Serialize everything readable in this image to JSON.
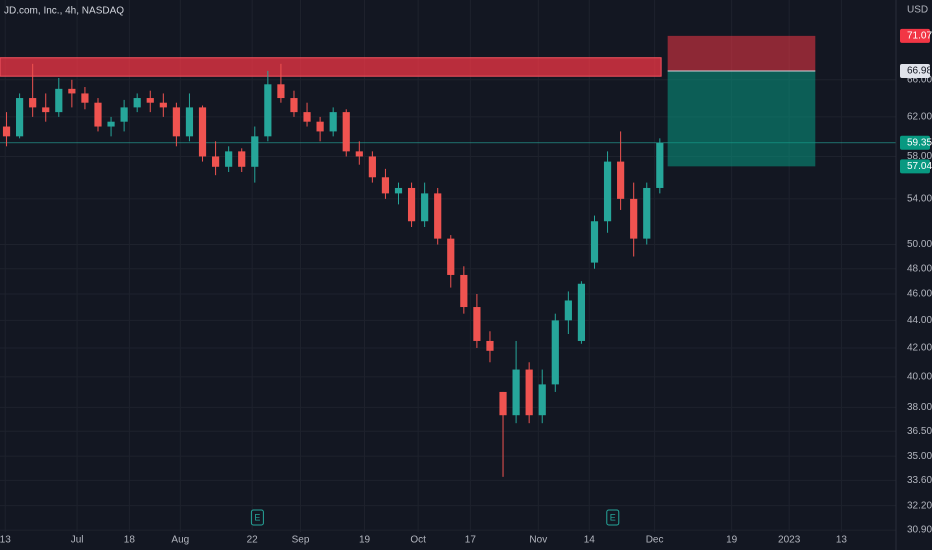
{
  "chart_data": {
    "type": "candlestick",
    "title": "JD.com, Inc., 4h, NASDAQ",
    "currency": "USD",
    "log_scale": true,
    "grid": true,
    "up_color": "#26a69a",
    "down_color": "#ef5350",
    "xlim": [
      -0.5,
      68
    ],
    "ylim": [
      30.8,
      75.5
    ],
    "xticks": [
      {
        "value": -0.1,
        "label": "13"
      },
      {
        "value": 5.4,
        "label": "Jul"
      },
      {
        "value": 9.4,
        "label": "18"
      },
      {
        "value": 13.3,
        "label": "Aug"
      },
      {
        "value": 18.8,
        "label": "22"
      },
      {
        "value": 22.5,
        "label": "Sep"
      },
      {
        "value": 27.4,
        "label": "19"
      },
      {
        "value": 31.5,
        "label": "Oct"
      },
      {
        "value": 35.5,
        "label": "17"
      },
      {
        "value": 40.7,
        "label": "Nov"
      },
      {
        "value": 44.6,
        "label": "14"
      },
      {
        "value": 49.6,
        "label": "Dec"
      },
      {
        "value": 55.5,
        "label": "19"
      },
      {
        "value": 59.9,
        "label": "2023"
      },
      {
        "value": 63.9,
        "label": "13"
      }
    ],
    "yticks": [
      {
        "value": 30.9,
        "label": "30.90"
      },
      {
        "value": 32.2,
        "label": "32.20"
      },
      {
        "value": 33.6,
        "label": "33.60"
      },
      {
        "value": 35,
        "label": "35.00"
      },
      {
        "value": 36.5,
        "label": "36.50"
      },
      {
        "value": 38,
        "label": "38.00"
      },
      {
        "value": 40,
        "label": "40.00"
      },
      {
        "value": 42,
        "label": "42.00"
      },
      {
        "value": 44,
        "label": "44.00"
      },
      {
        "value": 46,
        "label": "46.00"
      },
      {
        "value": 48,
        "label": "48.00"
      },
      {
        "value": 50,
        "label": "50.00"
      },
      {
        "value": 54,
        "label": "54.00"
      },
      {
        "value": 58,
        "label": "58.00"
      },
      {
        "value": 62,
        "label": "62.00"
      },
      {
        "value": 66,
        "label": "66.00"
      }
    ],
    "candles": {
      "open": [
        61,
        60,
        64,
        63,
        62.5,
        65,
        64.5,
        63.5,
        61,
        61.5,
        63,
        64,
        63.5,
        63,
        60,
        63,
        58,
        57,
        58.5,
        57,
        60,
        65.5,
        64,
        62.5,
        61.5,
        60.5,
        62.5,
        58.5,
        58,
        56,
        54.5,
        55,
        52,
        54.5,
        50.5,
        47.5,
        45,
        42.5,
        39,
        37.5,
        40.5,
        37.5,
        39.5,
        44,
        42.5,
        48.5,
        52,
        57.5,
        54,
        50.5,
        55
      ],
      "high": [
        62.5,
        64.5,
        67.8,
        64.5,
        66.2,
        66,
        65.2,
        64,
        62,
        63.8,
        64.5,
        64.8,
        64.5,
        63.5,
        64.5,
        63.2,
        59.5,
        59,
        58.8,
        61,
        67,
        67.8,
        64.8,
        63.5,
        62,
        63,
        62.8,
        59.5,
        58.5,
        56.8,
        55.5,
        55.5,
        55.5,
        55,
        50.8,
        48.2,
        46,
        43.2,
        39,
        42.5,
        41,
        40.5,
        44.5,
        46.2,
        47,
        52.5,
        58.5,
        60.5,
        55.5,
        55.5,
        59.8
      ],
      "low": [
        59,
        59.8,
        62,
        61.5,
        62,
        63,
        62.8,
        60.5,
        60,
        60.5,
        62.5,
        62.5,
        62,
        59,
        59.5,
        57.5,
        56.2,
        56.5,
        56.5,
        55.5,
        59.5,
        63.5,
        62,
        61,
        59.5,
        60,
        58,
        57.2,
        55.5,
        54,
        53.5,
        51.5,
        51.5,
        50,
        46.5,
        44.5,
        42,
        41,
        33.8,
        37,
        37,
        37,
        39,
        43,
        42.3,
        48,
        51,
        53,
        49,
        50,
        54.5
      ],
      "close": [
        60,
        64,
        63,
        62.5,
        65,
        64.5,
        63.5,
        61,
        61.5,
        63,
        64,
        63.5,
        63,
        60,
        63,
        58,
        57,
        58.5,
        57,
        60,
        65.5,
        64,
        62.5,
        61.5,
        60.5,
        62.5,
        58.5,
        58,
        56,
        54.5,
        55,
        52,
        54.5,
        50.5,
        47.5,
        45,
        42.5,
        41.8,
        37.5,
        40.5,
        37.5,
        39.5,
        44,
        45.5,
        46.8,
        52,
        57.5,
        54,
        50.5,
        55,
        59.35
      ]
    },
    "last_price": 59.35,
    "zone": {
      "start": -0.5,
      "end": 50.1,
      "top": 68.5,
      "bottom": 66.4
    },
    "position": {
      "start": 50.6,
      "end": 61.9,
      "stop": 71.07,
      "entry": 66.98,
      "target": 57.04
    },
    "markers": [
      {
        "index": 19.2,
        "label": "E"
      },
      {
        "index": 46.4,
        "label": "E"
      }
    ]
  }
}
